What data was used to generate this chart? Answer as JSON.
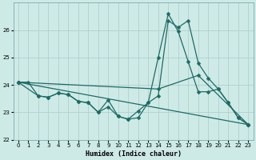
{
  "xlabel": "Humidex (Indice chaleur)",
  "xlim": [
    -0.5,
    23.5
  ],
  "ylim": [
    22.0,
    27.0
  ],
  "yticks": [
    22,
    23,
    24,
    25,
    26
  ],
  "xtick_labels": [
    "0",
    "1",
    "2",
    "3",
    "4",
    "5",
    "6",
    "7",
    "8",
    "9",
    "10",
    "11",
    "12",
    "13",
    "14",
    "15",
    "16",
    "17",
    "18",
    "19",
    "20",
    "21",
    "22",
    "23"
  ],
  "bg_color": "#ceeae7",
  "grid_color": "#aaccca",
  "line_color": "#1e6b65",
  "line1_x": [
    0,
    1,
    2,
    3,
    4,
    5,
    6,
    7,
    8,
    9,
    10,
    11,
    12,
    13,
    14,
    15,
    16,
    17,
    18,
    19,
    20,
    21,
    22,
    23
  ],
  "line1_y": [
    24.1,
    24.1,
    23.6,
    23.55,
    23.7,
    23.65,
    23.4,
    23.35,
    23.0,
    23.45,
    22.85,
    22.75,
    23.05,
    23.35,
    23.6,
    26.35,
    26.1,
    26.35,
    24.8,
    24.25,
    23.85,
    23.35,
    22.8,
    22.55
  ],
  "line2_x": [
    0,
    2,
    3,
    4,
    5,
    6,
    7,
    8,
    9,
    10,
    11,
    12,
    13,
    14,
    15,
    16,
    17,
    18,
    19,
    20,
    21,
    22,
    23
  ],
  "line2_y": [
    24.1,
    23.6,
    23.55,
    23.7,
    23.65,
    23.4,
    23.35,
    23.0,
    23.2,
    22.85,
    22.75,
    22.8,
    23.35,
    25.0,
    26.6,
    25.95,
    24.85,
    23.75,
    23.75,
    23.85,
    23.35,
    22.8,
    22.55
  ],
  "line3_x": [
    0,
    23
  ],
  "line3_y": [
    24.1,
    22.55
  ],
  "line4_x": [
    0,
    14,
    18,
    23
  ],
  "line4_y": [
    24.1,
    23.85,
    24.35,
    22.55
  ],
  "marker_size": 2.5,
  "linewidth": 0.9
}
